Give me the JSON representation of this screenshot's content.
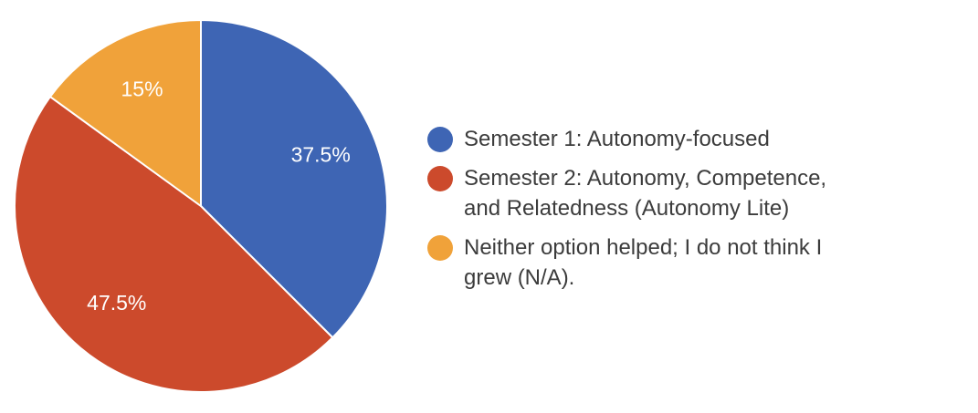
{
  "chart_data": {
    "type": "pie",
    "slices": [
      {
        "name": "Semester 1: Autonomy-focused",
        "value": 37.5,
        "label": "37.5%",
        "color": "#3e65b4",
        "legend_lines": [
          "Semester 1: Autonomy-focused"
        ]
      },
      {
        "name": "Semester 2: Autonomy, Competence, and Relatedness (Autonomy Lite)",
        "value": 47.5,
        "label": "47.5%",
        "color": "#cc4a2c",
        "legend_lines": [
          "Semester 2: Autonomy, Competence,",
          "and Relatedness (Autonomy Lite)"
        ]
      },
      {
        "name": "Neither option helped; I do not think I grew (N/A).",
        "value": 15,
        "label": "15%",
        "color": "#f0a23a",
        "legend_lines": [
          "Neither option helped; I do not think I",
          "grew (N/A)."
        ]
      }
    ],
    "legend_position": "right",
    "start_angle_deg": 90,
    "direction": "clockwise"
  }
}
